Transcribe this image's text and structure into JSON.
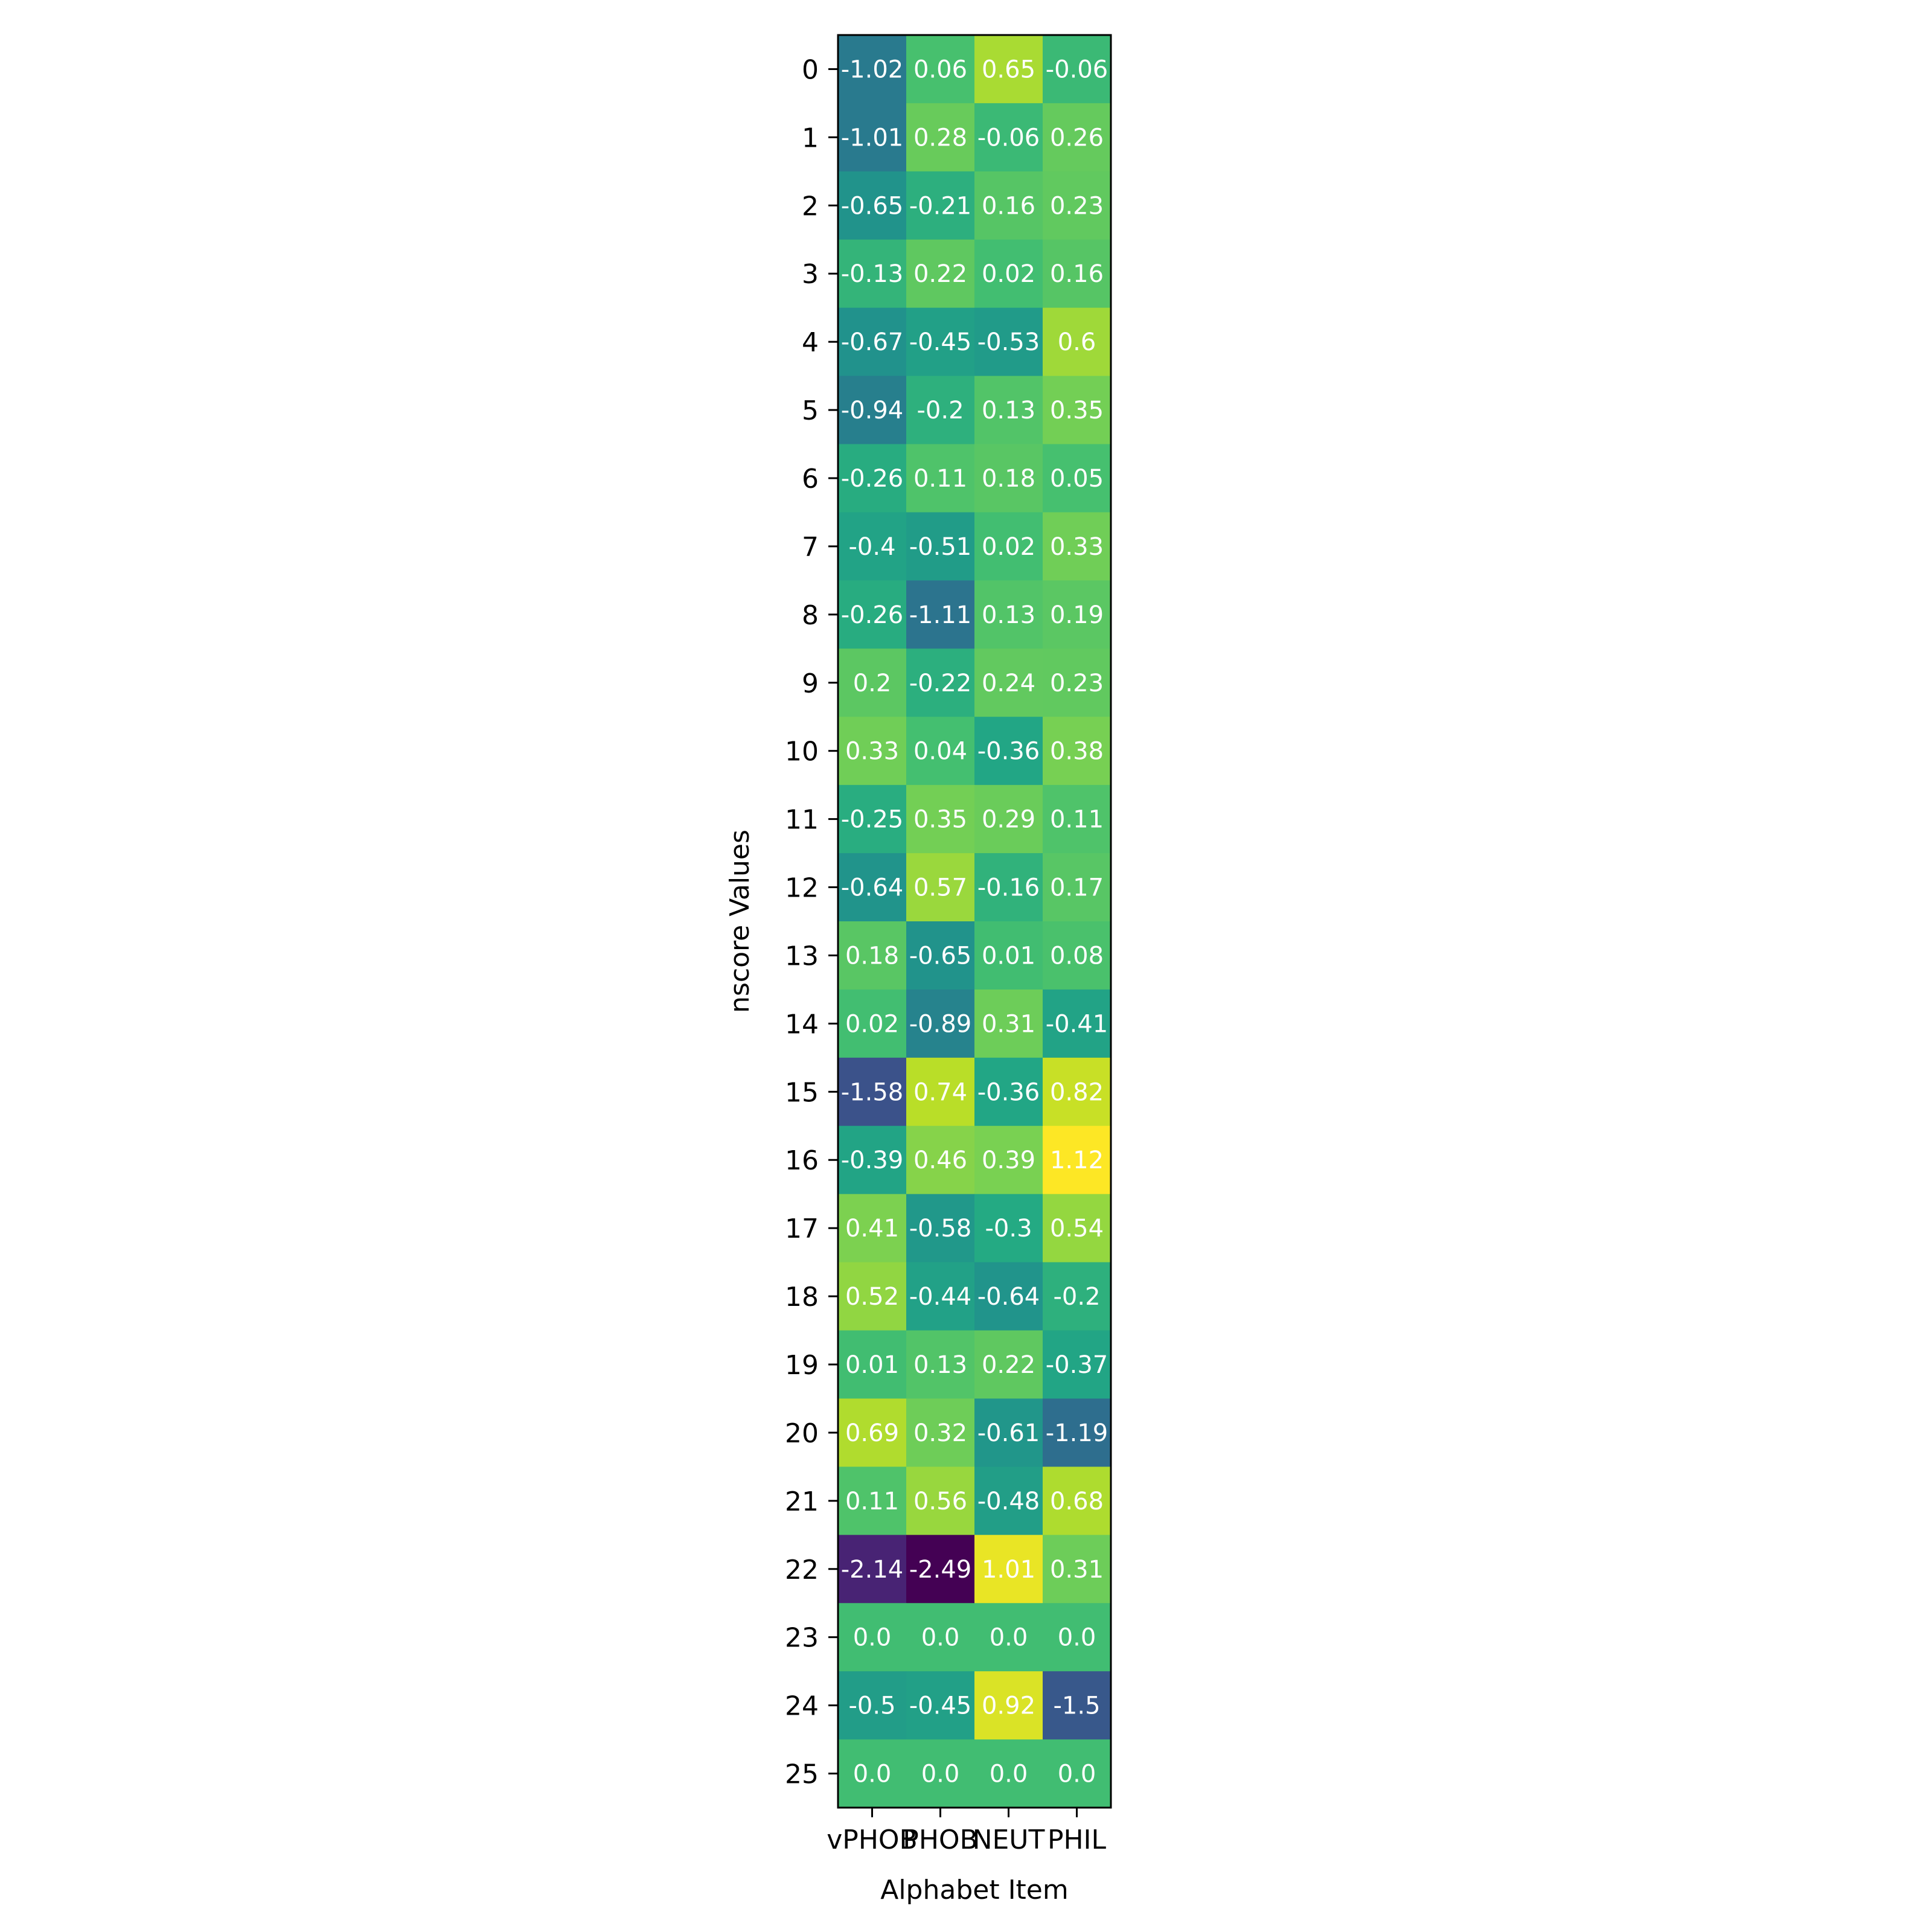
{
  "chart_data": {
    "type": "heatmap",
    "title": "",
    "xlabel": "Alphabet Item",
    "ylabel": "nscore Values",
    "x_categories": [
      "vPHOB",
      "PHOB",
      "NEUT",
      "PHIL"
    ],
    "y_categories": [
      "0",
      "1",
      "2",
      "3",
      "4",
      "5",
      "6",
      "7",
      "8",
      "9",
      "10",
      "11",
      "12",
      "13",
      "14",
      "15",
      "16",
      "17",
      "18",
      "19",
      "20",
      "21",
      "22",
      "23",
      "24",
      "25"
    ],
    "values": [
      [
        -1.02,
        0.06,
        0.65,
        -0.06
      ],
      [
        -1.01,
        0.28,
        -0.06,
        0.26
      ],
      [
        -0.65,
        -0.21,
        0.16,
        0.23
      ],
      [
        -0.13,
        0.22,
        0.02,
        0.16
      ],
      [
        -0.67,
        -0.45,
        -0.53,
        0.6
      ],
      [
        -0.94,
        -0.2,
        0.13,
        0.35
      ],
      [
        -0.26,
        0.11,
        0.18,
        0.05
      ],
      [
        -0.4,
        -0.51,
        0.02,
        0.33
      ],
      [
        -0.26,
        -1.11,
        0.13,
        0.19
      ],
      [
        0.2,
        -0.22,
        0.24,
        0.23
      ],
      [
        0.33,
        0.04,
        -0.36,
        0.38
      ],
      [
        -0.25,
        0.35,
        0.29,
        0.11
      ],
      [
        -0.64,
        0.57,
        -0.16,
        0.17
      ],
      [
        0.18,
        -0.65,
        0.01,
        0.08
      ],
      [
        0.02,
        -0.89,
        0.31,
        -0.41
      ],
      [
        -1.58,
        0.74,
        -0.36,
        0.82
      ],
      [
        -0.39,
        0.46,
        0.39,
        1.12
      ],
      [
        0.41,
        -0.58,
        -0.3,
        0.54
      ],
      [
        0.52,
        -0.44,
        -0.64,
        -0.2
      ],
      [
        0.01,
        0.13,
        0.22,
        -0.37
      ],
      [
        0.69,
        0.32,
        -0.61,
        -1.19
      ],
      [
        0.11,
        0.56,
        -0.48,
        0.68
      ],
      [
        -2.14,
        -2.49,
        1.01,
        0.31
      ],
      [
        0.0,
        0.0,
        0.0,
        0.0
      ],
      [
        -0.5,
        -0.45,
        0.92,
        -1.5
      ],
      [
        0.0,
        0.0,
        0.0,
        0.0
      ]
    ],
    "cell_labels": [
      [
        "-1.02",
        "0.06",
        "0.65",
        "-0.06"
      ],
      [
        "-1.01",
        "0.28",
        "-0.06",
        "0.26"
      ],
      [
        "-0.65",
        "-0.21",
        "0.16",
        "0.23"
      ],
      [
        "-0.13",
        "0.22",
        "0.02",
        "0.16"
      ],
      [
        "-0.67",
        "-0.45",
        "-0.53",
        "0.6"
      ],
      [
        "-0.94",
        "-0.2",
        "0.13",
        "0.35"
      ],
      [
        "-0.26",
        "0.11",
        "0.18",
        "0.05"
      ],
      [
        "-0.4",
        "-0.51",
        "0.02",
        "0.33"
      ],
      [
        "-0.26",
        "-1.11",
        "0.13",
        "0.19"
      ],
      [
        "0.2",
        "-0.22",
        "0.24",
        "0.23"
      ],
      [
        "0.33",
        "0.04",
        "-0.36",
        "0.38"
      ],
      [
        "-0.25",
        "0.35",
        "0.29",
        "0.11"
      ],
      [
        "-0.64",
        "0.57",
        "-0.16",
        "0.17"
      ],
      [
        "0.18",
        "-0.65",
        "0.01",
        "0.08"
      ],
      [
        "0.02",
        "-0.89",
        "0.31",
        "-0.41"
      ],
      [
        "-1.58",
        "0.74",
        "-0.36",
        "0.82"
      ],
      [
        "-0.39",
        "0.46",
        "0.39",
        "1.12"
      ],
      [
        "0.41",
        "-0.58",
        "-0.3",
        "0.54"
      ],
      [
        "0.52",
        "-0.44",
        "-0.64",
        "-0.2"
      ],
      [
        "0.01",
        "0.13",
        "0.22",
        "-0.37"
      ],
      [
        "0.69",
        "0.32",
        "-0.61",
        "-1.19"
      ],
      [
        "0.11",
        "0.56",
        "-0.48",
        "0.68"
      ],
      [
        "-2.14",
        "-2.49",
        "1.01",
        "0.31"
      ],
      [
        "0.0",
        "0.0",
        "0.0",
        "0.0"
      ],
      [
        "-0.5",
        "-0.45",
        "0.92",
        "-1.5"
      ],
      [
        "0.0",
        "0.0",
        "0.0",
        "0.0"
      ]
    ],
    "vmin": -2.49,
    "vmax": 1.12,
    "colormap": "viridis",
    "grid": false,
    "legend": "none"
  },
  "colors": {
    "background": "#ffffff",
    "axis": "#000000",
    "cell_text": "#ffffff"
  }
}
